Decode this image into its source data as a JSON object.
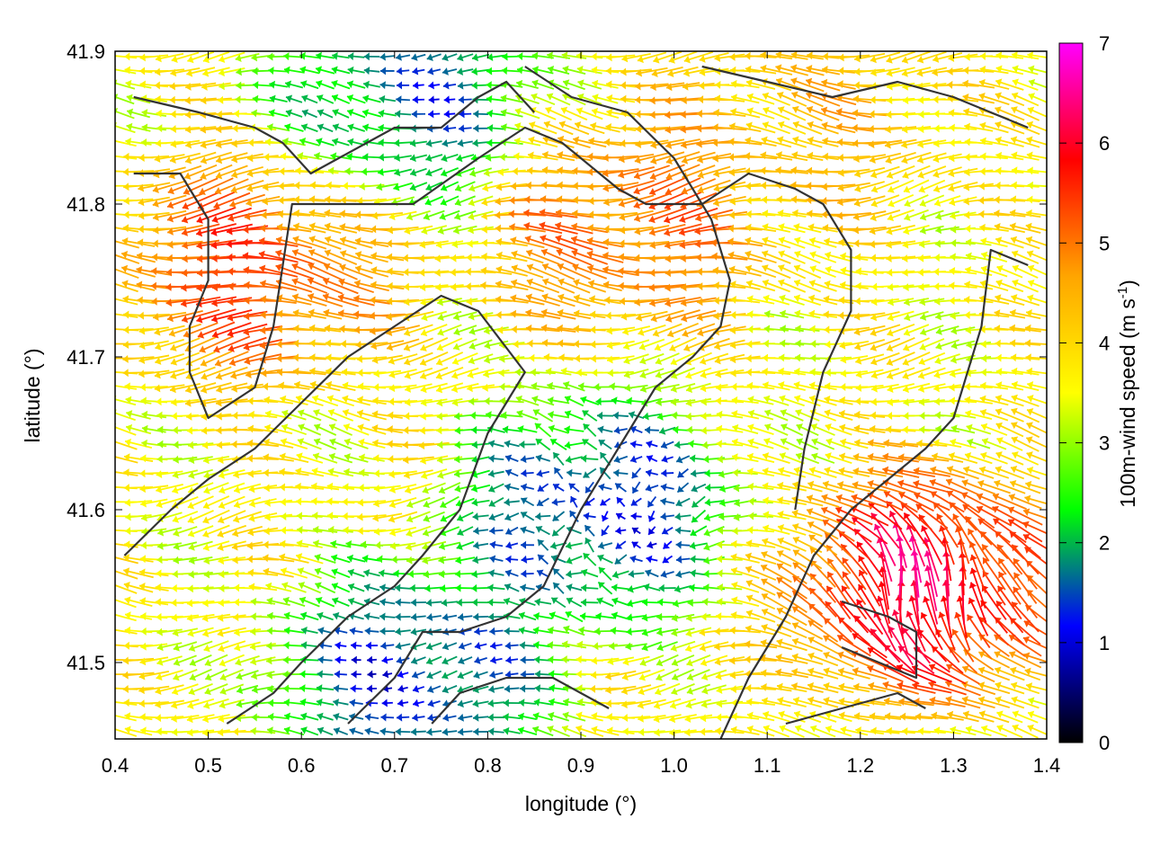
{
  "chart_data": {
    "type": "vector-field",
    "xlabel": "longitude (°)",
    "ylabel": "latitude (°)",
    "colorbar_label_text": "100m-wind speed (m s",
    "colorbar_label_sup": "-1",
    "colorbar_label_close": ")",
    "xlim": [
      0.4,
      1.4
    ],
    "ylim": [
      41.45,
      41.9
    ],
    "xticks": [
      0.4,
      0.5,
      0.6,
      0.7,
      0.8,
      0.9,
      1.0,
      1.1,
      1.2,
      1.3,
      1.4
    ],
    "xtick_labels": [
      "0.4",
      "0.5",
      "0.6",
      "0.7",
      "0.8",
      "0.9",
      "1.0",
      "1.1",
      "1.2",
      "1.3",
      "1.4"
    ],
    "yticks": [
      41.5,
      41.6,
      41.7,
      41.8,
      41.9
    ],
    "ytick_labels": [
      "41.5",
      "41.6",
      "41.7",
      "41.8",
      "41.9"
    ],
    "colorbar": {
      "range": [
        0,
        7
      ],
      "ticks": [
        0,
        1,
        2,
        3,
        4,
        5,
        6,
        7
      ],
      "tick_labels": [
        "0",
        "1",
        "2",
        "3",
        "4",
        "5",
        "6",
        "7"
      ],
      "colors": [
        "#000000",
        "#0000ff",
        "#00ff00",
        "#ffff00",
        "#ffa500",
        "#ff0000",
        "#ff00ff"
      ]
    },
    "wind_field": {
      "grid_spacing_deg": {
        "lon": 0.0167,
        "lat": 0.0094
      },
      "background_direction": "easterly (arrows point west)",
      "speed_features": [
        {
          "region": "north-west jet",
          "lon": 0.55,
          "lat": 41.76,
          "speed": 5.8
        },
        {
          "region": "north-central jet",
          "lon": 0.95,
          "lat": 41.79,
          "speed": 5.5
        },
        {
          "region": "north-east flow",
          "lon": 1.15,
          "lat": 41.86,
          "speed": 4.5
        },
        {
          "region": "central calm",
          "lon": 0.92,
          "lat": 41.6,
          "speed": 0.6
        },
        {
          "region": "south-west calm",
          "lon": 0.72,
          "lat": 41.49,
          "speed": 0.6
        },
        {
          "region": "south-east peak",
          "lon": 1.27,
          "lat": 41.55,
          "speed": 6.8
        },
        {
          "region": "north calm pocket",
          "lon": 0.72,
          "lat": 41.87,
          "speed": 1.0
        }
      ]
    },
    "contours": [
      {
        "name": "ridge-west-loop",
        "points": [
          [
            0.42,
            41.82
          ],
          [
            0.47,
            41.82
          ],
          [
            0.5,
            41.79
          ],
          [
            0.5,
            41.75
          ],
          [
            0.48,
            41.72
          ],
          [
            0.48,
            41.69
          ],
          [
            0.5,
            41.66
          ],
          [
            0.55,
            41.68
          ],
          [
            0.57,
            41.72
          ],
          [
            0.58,
            41.76
          ],
          [
            0.59,
            41.8
          ],
          [
            0.64,
            41.8
          ],
          [
            0.72,
            41.8
          ],
          [
            0.79,
            41.83
          ],
          [
            0.84,
            41.85
          ],
          [
            0.88,
            41.84
          ],
          [
            0.94,
            41.81
          ],
          [
            0.97,
            41.8
          ],
          [
            1.03,
            41.8
          ],
          [
            1.08,
            41.82
          ],
          [
            1.13,
            41.81
          ],
          [
            1.16,
            41.8
          ],
          [
            1.19,
            41.77
          ],
          [
            1.19,
            41.73
          ],
          [
            1.16,
            41.69
          ],
          [
            1.14,
            41.64
          ],
          [
            1.13,
            41.6
          ]
        ]
      },
      {
        "name": "valley-mid",
        "points": [
          [
            0.41,
            41.57
          ],
          [
            0.46,
            41.6
          ],
          [
            0.5,
            41.62
          ],
          [
            0.55,
            41.64
          ],
          [
            0.6,
            41.67
          ],
          [
            0.65,
            41.7
          ],
          [
            0.7,
            41.72
          ],
          [
            0.75,
            41.74
          ],
          [
            0.79,
            41.73
          ],
          [
            0.84,
            41.69
          ],
          [
            0.8,
            41.65
          ],
          [
            0.77,
            41.6
          ],
          [
            0.73,
            41.57
          ],
          [
            0.7,
            41.55
          ],
          [
            0.65,
            41.53
          ],
          [
            0.6,
            41.5
          ],
          [
            0.57,
            41.48
          ],
          [
            0.52,
            41.46
          ]
        ]
      },
      {
        "name": "ridge-central",
        "points": [
          [
            0.65,
            41.46
          ],
          [
            0.7,
            41.49
          ],
          [
            0.73,
            41.52
          ],
          [
            0.77,
            41.52
          ],
          [
            0.82,
            41.53
          ],
          [
            0.86,
            41.55
          ],
          [
            0.9,
            41.6
          ],
          [
            0.94,
            41.64
          ],
          [
            0.98,
            41.68
          ],
          [
            1.02,
            41.7
          ],
          [
            1.05,
            41.72
          ],
          [
            1.06,
            41.75
          ],
          [
            1.04,
            41.79
          ],
          [
            1.0,
            41.83
          ],
          [
            0.95,
            41.86
          ],
          [
            0.89,
            41.87
          ],
          [
            0.84,
            41.89
          ]
        ]
      },
      {
        "name": "ridge-east",
        "points": [
          [
            1.05,
            41.45
          ],
          [
            1.08,
            41.49
          ],
          [
            1.12,
            41.53
          ],
          [
            1.15,
            41.57
          ],
          [
            1.19,
            41.6
          ],
          [
            1.23,
            41.62
          ],
          [
            1.27,
            41.64
          ],
          [
            1.3,
            41.66
          ],
          [
            1.33,
            41.72
          ],
          [
            1.34,
            41.77
          ],
          [
            1.38,
            41.76
          ]
        ]
      },
      {
        "name": "north-strip",
        "points": [
          [
            0.42,
            41.87
          ],
          [
            0.49,
            41.86
          ],
          [
            0.55,
            41.85
          ],
          [
            0.58,
            41.84
          ],
          [
            0.61,
            41.82
          ],
          [
            0.64,
            41.83
          ],
          [
            0.67,
            41.84
          ],
          [
            0.7,
            41.85
          ],
          [
            0.75,
            41.85
          ],
          [
            0.79,
            41.87
          ],
          [
            0.82,
            41.88
          ],
          [
            0.85,
            41.86
          ]
        ]
      },
      {
        "name": "north-east-strip",
        "points": [
          [
            1.03,
            41.89
          ],
          [
            1.1,
            41.88
          ],
          [
            1.17,
            41.87
          ],
          [
            1.24,
            41.88
          ],
          [
            1.3,
            41.87
          ],
          [
            1.34,
            41.86
          ],
          [
            1.38,
            41.85
          ]
        ]
      },
      {
        "name": "south-pocket-1",
        "points": [
          [
            0.74,
            41.46
          ],
          [
            0.77,
            41.48
          ],
          [
            0.82,
            41.49
          ],
          [
            0.87,
            41.49
          ],
          [
            0.9,
            41.48
          ],
          [
            0.93,
            41.47
          ]
        ]
      },
      {
        "name": "south-pocket-2",
        "points": [
          [
            1.12,
            41.46
          ],
          [
            1.18,
            41.47
          ],
          [
            1.24,
            41.48
          ],
          [
            1.27,
            41.47
          ]
        ]
      },
      {
        "name": "east-loop",
        "points": [
          [
            1.18,
            41.54
          ],
          [
            1.23,
            41.53
          ],
          [
            1.26,
            41.52
          ],
          [
            1.26,
            41.49
          ],
          [
            1.22,
            41.5
          ],
          [
            1.18,
            41.51
          ]
        ]
      }
    ]
  }
}
